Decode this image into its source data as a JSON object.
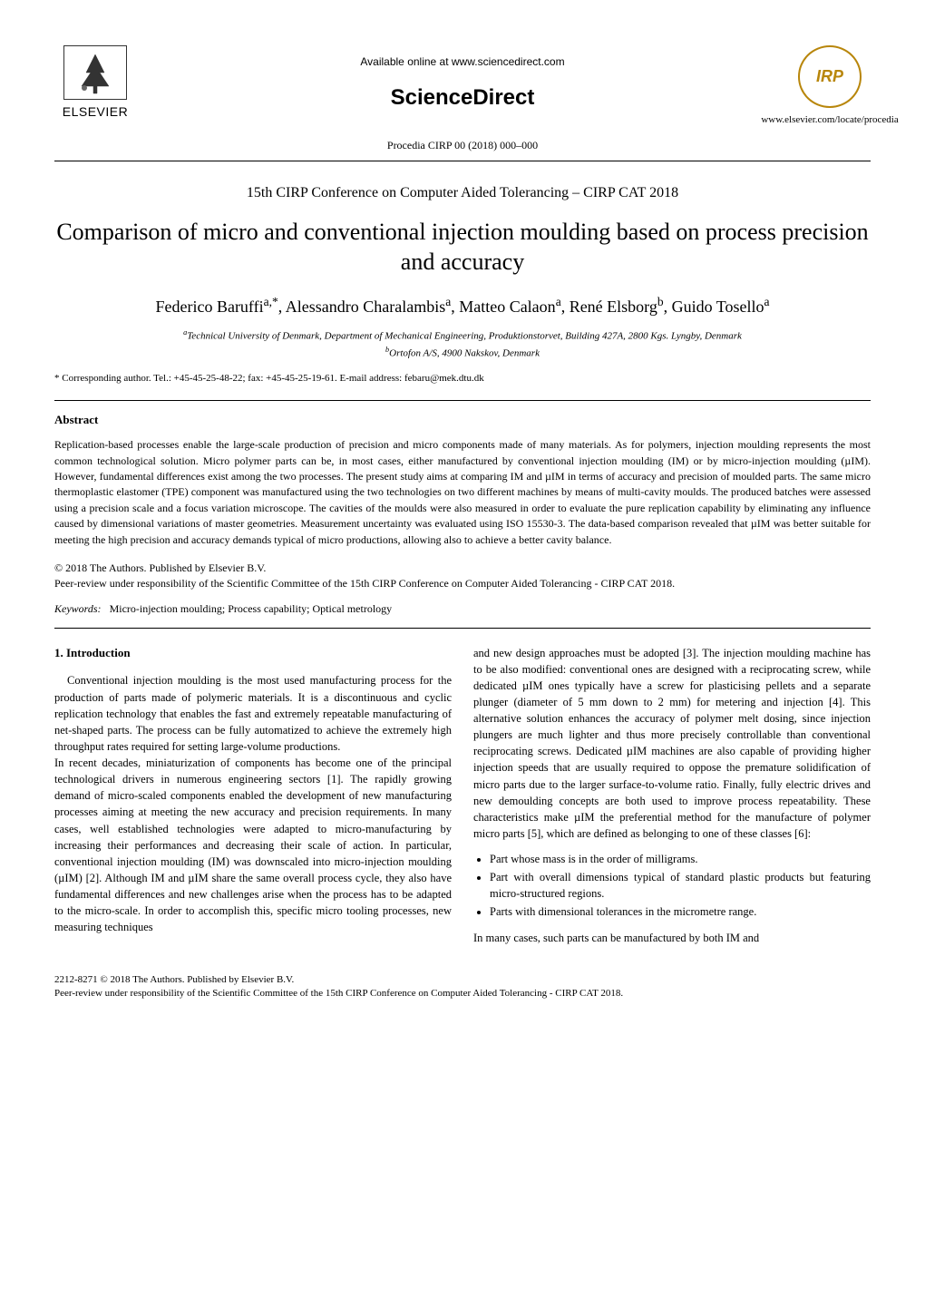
{
  "header": {
    "elsevier_label": "ELSEVIER",
    "available_online": "Available online at www.sciencedirect.com",
    "sciencedirect": "ScienceDirect",
    "procedia": "Procedia CIRP 00 (2018) 000–000",
    "cirp_text": "IRP",
    "www": "www.elsevier.com/locate/procedia"
  },
  "conference": "15th CIRP Conference on Computer Aided Tolerancing – CIRP CAT 2018",
  "title": "Comparison of micro and conventional injection moulding based on process precision and accuracy",
  "authors_html": "Federico Baruffi<sup>a,*</sup>, Alessandro Charalambis<sup>a</sup>, Matteo Calaon<sup>a</sup>, René Elsborg<sup>b</sup>, Guido Tosello<sup>a</sup>",
  "affiliation_a": "Technical University of Denmark, Department of Mechanical Engineering, Produktionstorvet, Building 427A, 2800 Kgs. Lyngby, Denmark",
  "affiliation_b": "Ortofon A/S, 4900 Nakskov, Denmark",
  "corresponding": "* Corresponding author. Tel.: +45-45-25-48-22; fax: +45-45-25-19-61. E-mail address: febaru@mek.dtu.dk",
  "abstract_heading": "Abstract",
  "abstract_text": "Replication-based processes enable the large-scale production of precision and micro components made of many materials. As for polymers, injection moulding represents the most common technological solution. Micro polymer parts can be, in most cases, either manufactured by conventional injection moulding (IM) or by micro-injection moulding (µIM). However, fundamental differences exist among the two processes. The present study aims at comparing IM and µIM in terms of accuracy and precision of moulded parts. The same micro thermoplastic elastomer (TPE) component was manufactured using the two technologies on two different machines by means of multi-cavity moulds. The produced batches were assessed using a precision scale and a focus variation microscope. The cavities of the moulds were also measured in order to evaluate the pure replication capability by eliminating any influence caused by dimensional variations of master geometries. Measurement uncertainty was evaluated using ISO 15530-3. The data-based comparison revealed that µIM was better suitable for meeting the high precision and accuracy demands typical of micro productions, allowing also to achieve a better cavity balance.",
  "copyright_line1": "© 2018 The Authors. Published by Elsevier B.V.",
  "copyright_line2": "Peer-review under responsibility of the Scientific Committee of the 15th CIRP Conference on Computer Aided Tolerancing - CIRP CAT 2018.",
  "keywords_label": "Keywords:",
  "keywords_text": "Micro-injection moulding; Process capability; Optical metrology",
  "intro_heading": "1. Introduction",
  "col1_para1": "Conventional injection moulding is the most used manufacturing process for the production of parts made of polymeric materials. It is a discontinuous and cyclic replication technology that enables the fast and extremely repeatable manufacturing of net-shaped parts. The process can be fully automatized to achieve the extremely high throughput rates required for setting large-volume productions.",
  "col1_para2": "In recent decades, miniaturization of components has become one of the principal technological drivers in numerous engineering sectors [1]. The rapidly growing demand of micro-scaled components enabled the development of new manufacturing processes aiming at meeting the new accuracy and precision requirements. In many cases, well established technologies were adapted to micro-manufacturing by increasing their performances and decreasing their scale of action. In particular, conventional injection moulding (IM) was downscaled into micro-injection moulding (µIM) [2]. Although IM and µIM share the same overall process cycle, they also have fundamental differences and new challenges arise when the process has to be adapted to the micro-scale. In order to accomplish this, specific micro tooling processes, new measuring techniques",
  "col2_para1": "and new design approaches must be adopted [3]. The injection moulding machine has to be also modified: conventional ones are designed with a reciprocating screw, while dedicated µIM ones typically have a screw for plasticising pellets and a separate plunger (diameter of 5 mm down to 2 mm) for metering and injection [4]. This alternative solution enhances the accuracy of polymer melt dosing, since injection plungers are much lighter and thus more precisely controllable than conventional reciprocating screws. Dedicated µIM machines are also capable of providing higher injection speeds that are usually required to oppose the premature solidification of micro parts due to the larger surface-to-volume ratio. Finally, fully electric drives and new demoulding concepts are both used to improve process repeatability. These characteristics make µIM the preferential method for the manufacture of polymer micro parts [5], which are defined as belonging to one of these classes [6]:",
  "bullets": [
    "Part whose mass is in the order of milligrams.",
    "Part with overall dimensions typical of standard plastic products but featuring micro-structured regions.",
    "Parts with dimensional tolerances in the micrometre range."
  ],
  "col2_para2": "In many cases, such parts can be manufactured by both IM and",
  "footer_line1": "2212-8271 © 2018 The Authors. Published by Elsevier B.V.",
  "footer_line2": "Peer-review under responsibility of the Scientific Committee of the 15th CIRP Conference on Computer Aided Tolerancing - CIRP CAT 2018.",
  "colors": {
    "text": "#000000",
    "background": "#ffffff",
    "cirp_gold": "#b8860b"
  }
}
